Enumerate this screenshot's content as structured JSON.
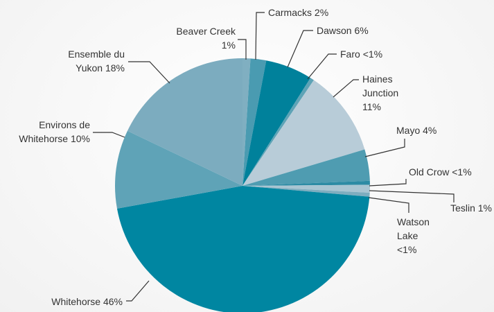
{
  "chart_data": {
    "type": "pie",
    "categories": [
      "Beaver Creek",
      "Carmacks",
      "Dawson",
      "Faro",
      "Haines Junction",
      "Mayo",
      "Old Crow",
      "Teslin",
      "Watson Lake",
      "Whitehorse",
      "Environs de Whitehorse",
      "Ensemble du Yukon"
    ],
    "values": [
      1,
      2,
      6,
      0.5,
      11,
      4,
      0.5,
      1,
      0.5,
      46,
      10,
      18
    ],
    "value_labels": [
      "1%",
      "2%",
      "6%",
      "<1%",
      "11%",
      "4%",
      "<1%",
      "1%",
      "<1%",
      "46%",
      "10%",
      "18%"
    ],
    "colors": [
      "#80afc1",
      "#4a9bb1",
      "#00819b",
      "#5ea3b6",
      "#b8ccd8",
      "#4f9cb1",
      "#2c8ba4",
      "#a9c5d2",
      "#7eadbf",
      "#0086a1",
      "#5fa3b7",
      "#7cacbf"
    ]
  }
}
